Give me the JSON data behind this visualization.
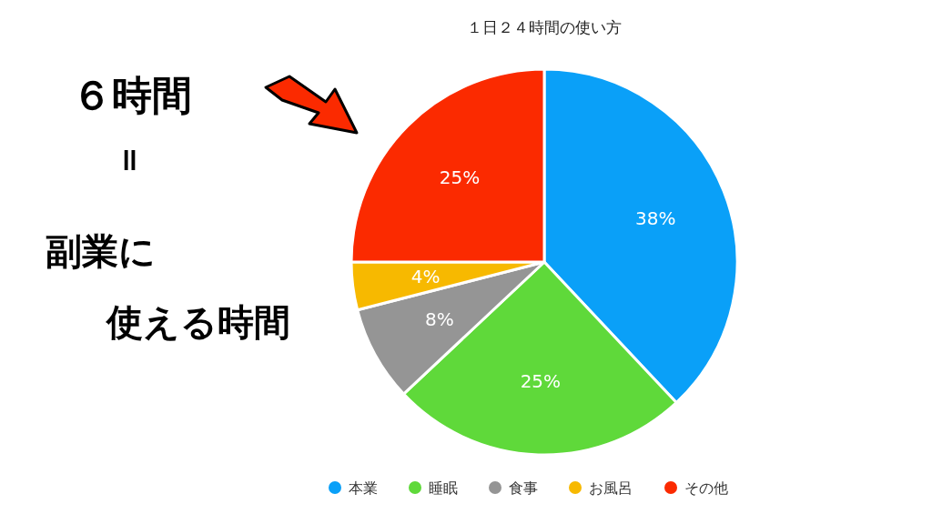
{
  "chart_data": {
    "type": "pie",
    "title": "１日２４時間の使い方",
    "categories": [
      "本業",
      "睡眠",
      "食事",
      "お風呂",
      "その他"
    ],
    "values": [
      38,
      25,
      8,
      4,
      25
    ],
    "colors": [
      "#0aa0f8",
      "#5fd93a",
      "#959595",
      "#f7b900",
      "#fb2a00"
    ],
    "value_labels": [
      "38%",
      "25%",
      "8%",
      "4%",
      "25%"
    ],
    "legend": "bottom",
    "annotations": [
      "６時間",
      "＝",
      "副業に",
      "使える時間"
    ]
  }
}
